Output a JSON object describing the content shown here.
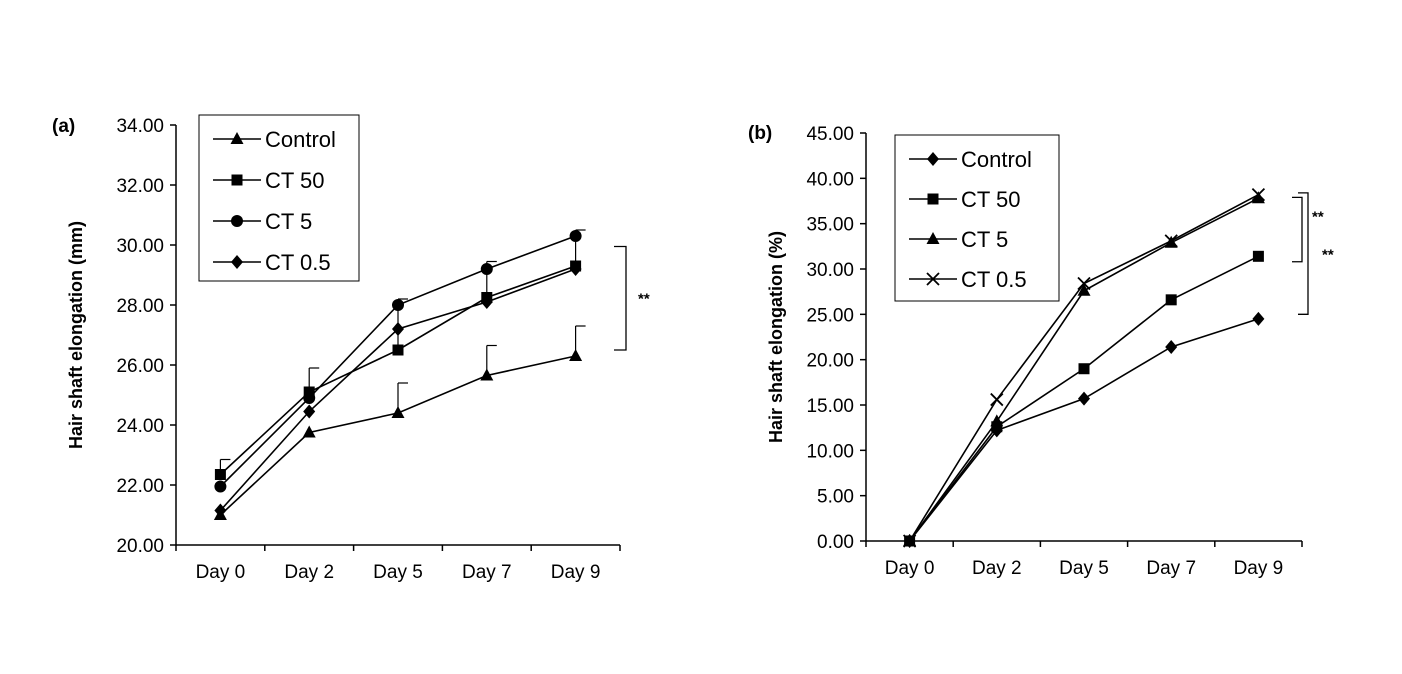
{
  "chart_data": [
    {
      "type": "line",
      "panel_label": "(a)",
      "title": "",
      "xlabel": "",
      "ylabel": "Hair shaft elongation (mm)",
      "categories": [
        "Day 0",
        "Day 2",
        "Day 5",
        "Day 7",
        "Day 9"
      ],
      "ylim": [
        20,
        34
      ],
      "yticks": [
        "20.00",
        "22.00",
        "24.00",
        "26.00",
        "28.00",
        "30.00",
        "32.00",
        "34.00"
      ],
      "grid": false,
      "legend_position": "top-left",
      "series": [
        {
          "name": "Control",
          "marker": "triangle",
          "values": [
            21.0,
            23.75,
            24.4,
            25.65,
            26.3
          ],
          "error": [
            null,
            null,
            1.0,
            1.0,
            1.0
          ]
        },
        {
          "name": "CT 50",
          "marker": "square",
          "values": [
            22.35,
            25.1,
            26.5,
            28.25,
            29.3
          ],
          "error": [
            0.5,
            0.8,
            1.7,
            1.2,
            1.2
          ]
        },
        {
          "name": "CT 5",
          "marker": "circle",
          "values": [
            21.95,
            24.9,
            28.0,
            29.2,
            30.3
          ],
          "error": null
        },
        {
          "name": "CT 0.5",
          "marker": "diamond",
          "values": [
            21.15,
            24.45,
            27.2,
            28.1,
            29.2
          ],
          "error": null
        }
      ],
      "annotations": [
        {
          "text": "**",
          "bracket_from": 26.5,
          "bracket_to": 29.95
        }
      ]
    },
    {
      "type": "line",
      "panel_label": "(b)",
      "title": "",
      "xlabel": "",
      "ylabel": "Hair shaft elongation (%)",
      "categories": [
        "Day 0",
        "Day 2",
        "Day 5",
        "Day 7",
        "Day 9"
      ],
      "ylim": [
        0,
        45
      ],
      "yticks": [
        "0.00",
        "5.00",
        "10.00",
        "15.00",
        "20.00",
        "25.00",
        "30.00",
        "35.00",
        "40.00",
        "45.00"
      ],
      "grid": false,
      "legend_position": "top-left",
      "series": [
        {
          "name": "Control",
          "marker": "diamond",
          "values": [
            0,
            12.2,
            15.7,
            21.4,
            24.5
          ]
        },
        {
          "name": "CT 50",
          "marker": "square",
          "values": [
            0,
            12.6,
            19.0,
            26.6,
            31.4
          ]
        },
        {
          "name": "CT 5",
          "marker": "triangle",
          "values": [
            0,
            13.2,
            27.6,
            32.9,
            37.8
          ]
        },
        {
          "name": "CT 0.5",
          "marker": "cross",
          "values": [
            0,
            15.6,
            28.4,
            33.1,
            38.2
          ]
        }
      ],
      "annotations": [
        {
          "text": "**",
          "bracket_from": 30.8,
          "bracket_to": 37.9
        },
        {
          "text": "**",
          "bracket_from": 25.0,
          "bracket_to": 38.4
        }
      ]
    }
  ]
}
